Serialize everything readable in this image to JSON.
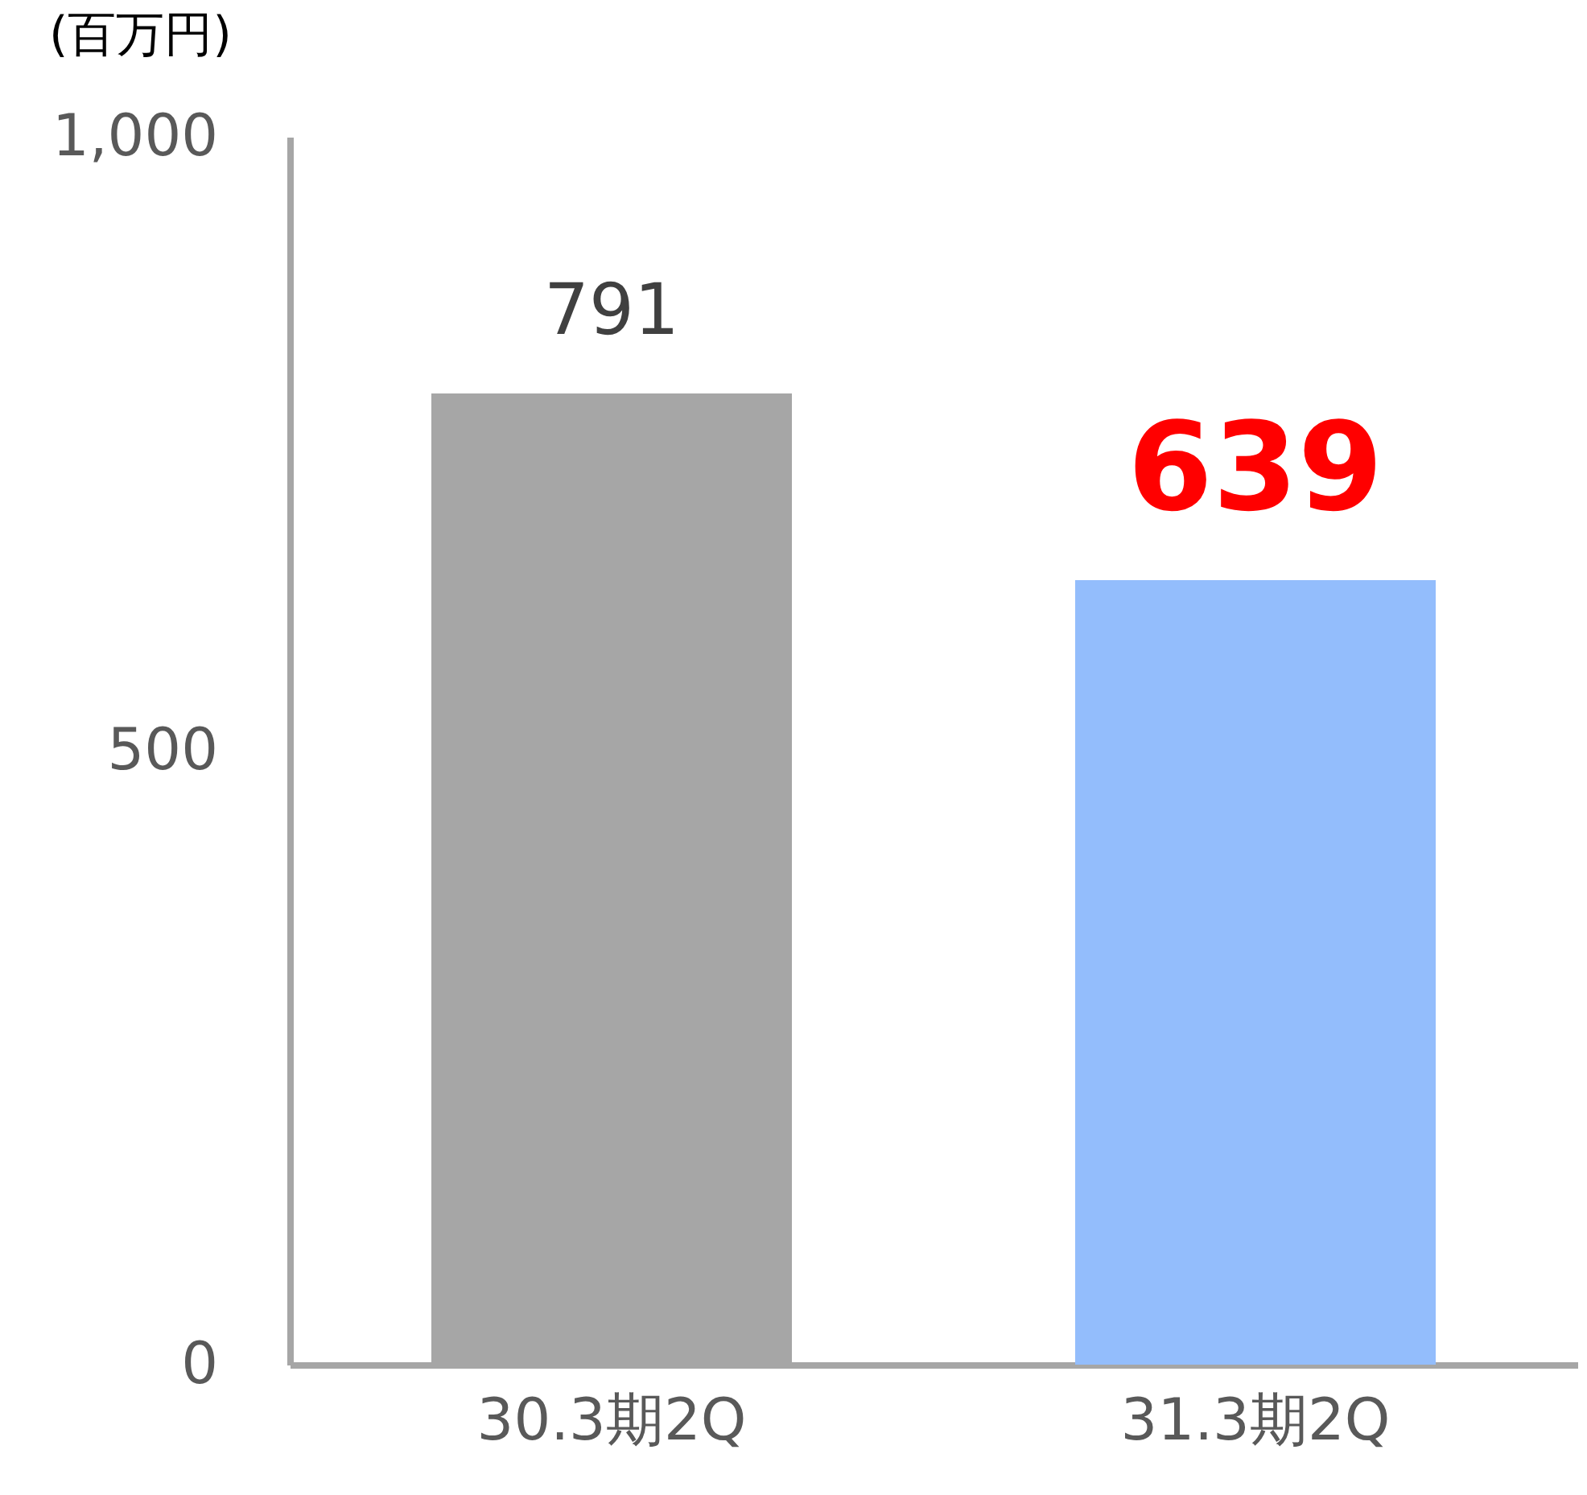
{
  "chart_data": {
    "type": "bar",
    "ylabel": "(百万円)",
    "categories": [
      "30.3期2Q",
      "31.3期2Q"
    ],
    "values": [
      791,
      639
    ],
    "colors": [
      "#a6a6a6",
      "#93bdfc"
    ],
    "ylim": [
      0,
      1000
    ],
    "yticks": [
      0,
      500,
      {
        "value": 1000,
        "label": "1,000"
      }
    ],
    "data_labels": true,
    "grid": false
  }
}
